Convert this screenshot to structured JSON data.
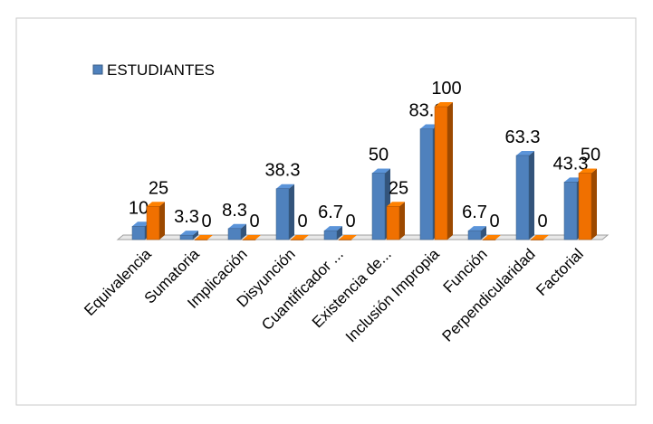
{
  "chart_data": {
    "type": "bar3d",
    "categories": [
      "Equivalencia",
      "Sumatoria",
      "Implicación",
      "Disyunción",
      "Cuantificador ...",
      "Existencia de...",
      "Inclusión Impropia",
      "Función",
      "Perpendicularidad",
      "Factorial"
    ],
    "series": [
      {
        "name": "ESTUDIANTES",
        "color": "#4f81bd",
        "values": [
          10,
          3.3,
          8.3,
          38.3,
          6.7,
          50,
          83.3,
          6.7,
          63.3,
          43.3
        ]
      },
      {
        "color": "#f07000",
        "values": [
          25,
          0,
          0,
          0,
          0,
          25,
          100,
          0,
          0,
          50
        ]
      }
    ],
    "legend": "top-left"
  }
}
